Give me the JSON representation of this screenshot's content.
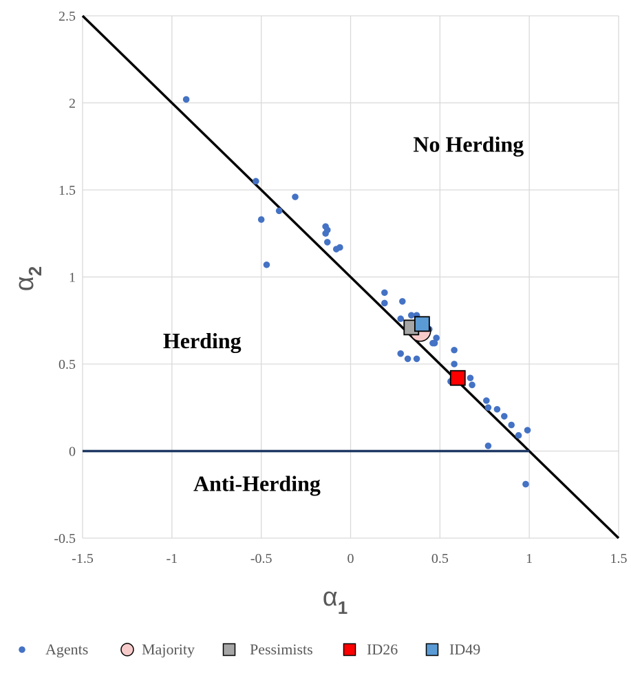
{
  "chart_data": {
    "type": "scatter",
    "title": "",
    "xlabel": "α",
    "xlabel_sub": "1",
    "ylabel": "α",
    "ylabel_sub": "2",
    "xlim": [
      -1.5,
      1.5
    ],
    "ylim": [
      -0.5,
      2.5
    ],
    "xticks": [
      -1.5,
      -1,
      -0.5,
      0,
      0.5,
      1,
      1.5
    ],
    "yticks": [
      -0.5,
      0,
      0.5,
      1,
      1.5,
      2,
      2.5
    ],
    "xtick_labels": [
      "-1.5",
      "-1",
      "-0.5",
      "0",
      "0.5",
      "1",
      "1.5"
    ],
    "ytick_labels": [
      "-0.5",
      "0",
      "0.5",
      "1",
      "1.5",
      "2",
      "2.5"
    ],
    "grid": true,
    "legend_position": "bottom",
    "lines": [
      {
        "name": "diagonal",
        "points": [
          [
            -1.5,
            2.5
          ],
          [
            1.5,
            -0.5
          ]
        ],
        "color": "#000000"
      },
      {
        "name": "zero",
        "points": [
          [
            -1.5,
            0
          ],
          [
            1,
            0
          ]
        ],
        "color": "#1F3864"
      }
    ],
    "annotations": [
      {
        "text": "No Herding",
        "x": 0.35,
        "y": 1.72
      },
      {
        "text": "Herding",
        "x": -1.05,
        "y": 0.59
      },
      {
        "text": "Anti-Herding",
        "x": -0.88,
        "y": -0.23
      }
    ],
    "series": [
      {
        "name": "Agents",
        "marker": "dot",
        "color": "#4472C4",
        "points": [
          [
            -0.92,
            2.02
          ],
          [
            -0.53,
            1.55
          ],
          [
            -0.5,
            1.33
          ],
          [
            -0.4,
            1.38
          ],
          [
            -0.31,
            1.46
          ],
          [
            -0.47,
            1.07
          ],
          [
            -0.14,
            1.29
          ],
          [
            -0.13,
            1.27
          ],
          [
            -0.14,
            1.25
          ],
          [
            -0.13,
            1.2
          ],
          [
            -0.08,
            1.16
          ],
          [
            -0.06,
            1.17
          ],
          [
            0.19,
            0.91
          ],
          [
            0.19,
            0.85
          ],
          [
            0.29,
            0.86
          ],
          [
            0.28,
            0.76
          ],
          [
            0.34,
            0.78
          ],
          [
            0.37,
            0.78
          ],
          [
            0.38,
            0.72
          ],
          [
            0.44,
            0.7
          ],
          [
            0.48,
            0.65
          ],
          [
            0.46,
            0.62
          ],
          [
            0.47,
            0.62
          ],
          [
            0.28,
            0.56
          ],
          [
            0.32,
            0.53
          ],
          [
            0.37,
            0.53
          ],
          [
            0.58,
            0.58
          ],
          [
            0.58,
            0.5
          ],
          [
            0.57,
            0.41
          ],
          [
            0.56,
            0.4
          ],
          [
            0.67,
            0.42
          ],
          [
            0.68,
            0.38
          ],
          [
            0.76,
            0.29
          ],
          [
            0.77,
            0.25
          ],
          [
            0.82,
            0.24
          ],
          [
            0.86,
            0.2
          ],
          [
            0.9,
            0.15
          ],
          [
            0.94,
            0.09
          ],
          [
            0.99,
            0.12
          ],
          [
            0.77,
            0.03
          ],
          [
            0.98,
            -0.19
          ]
        ]
      },
      {
        "name": "Majority",
        "marker": "circle",
        "color": "#F8CBCB",
        "points": [
          [
            0.39,
            0.69
          ]
        ]
      },
      {
        "name": "Pessimists",
        "marker": "square",
        "color": "#A6A6A6",
        "points": [
          [
            0.34,
            0.71
          ]
        ]
      },
      {
        "name": "ID26",
        "marker": "square",
        "color": "#FF0000",
        "points": [
          [
            0.6,
            0.42
          ]
        ]
      },
      {
        "name": "ID49",
        "marker": "square",
        "color": "#5B9BD5",
        "points": [
          [
            0.4,
            0.73
          ]
        ]
      }
    ]
  }
}
